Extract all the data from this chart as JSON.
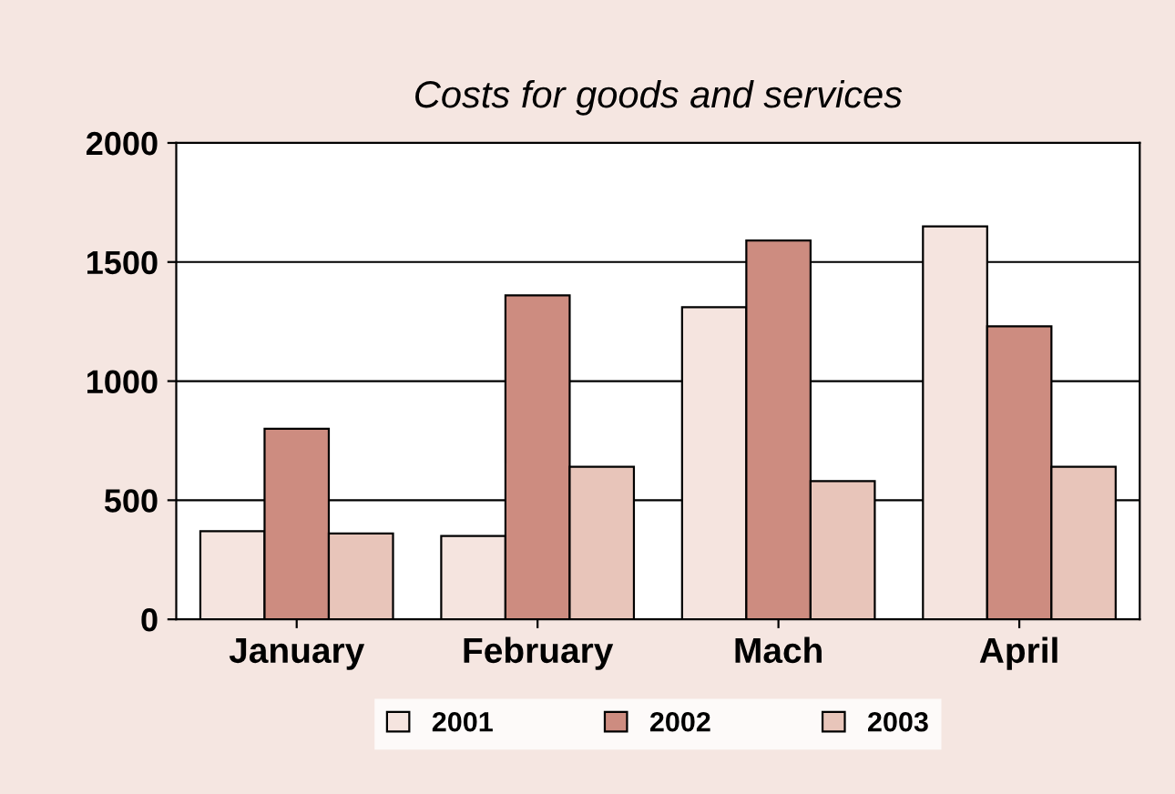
{
  "chart_data": {
    "type": "bar",
    "title": "Costs for goods and services",
    "categories": [
      "January",
      "February",
      "Mach",
      "April"
    ],
    "series": [
      {
        "name": "2001",
        "color": "#f5e4df",
        "values": [
          370,
          350,
          1310,
          1650
        ]
      },
      {
        "name": "2002",
        "color": "#cd8c80",
        "values": [
          800,
          1360,
          1590,
          1230
        ]
      },
      {
        "name": "2003",
        "color": "#e8c5ba",
        "values": [
          360,
          640,
          580,
          640
        ]
      }
    ],
    "ylim": [
      0,
      2000
    ],
    "yticks": [
      0,
      500,
      1000,
      1500,
      2000
    ],
    "grid": "y",
    "legend": "bottom"
  }
}
